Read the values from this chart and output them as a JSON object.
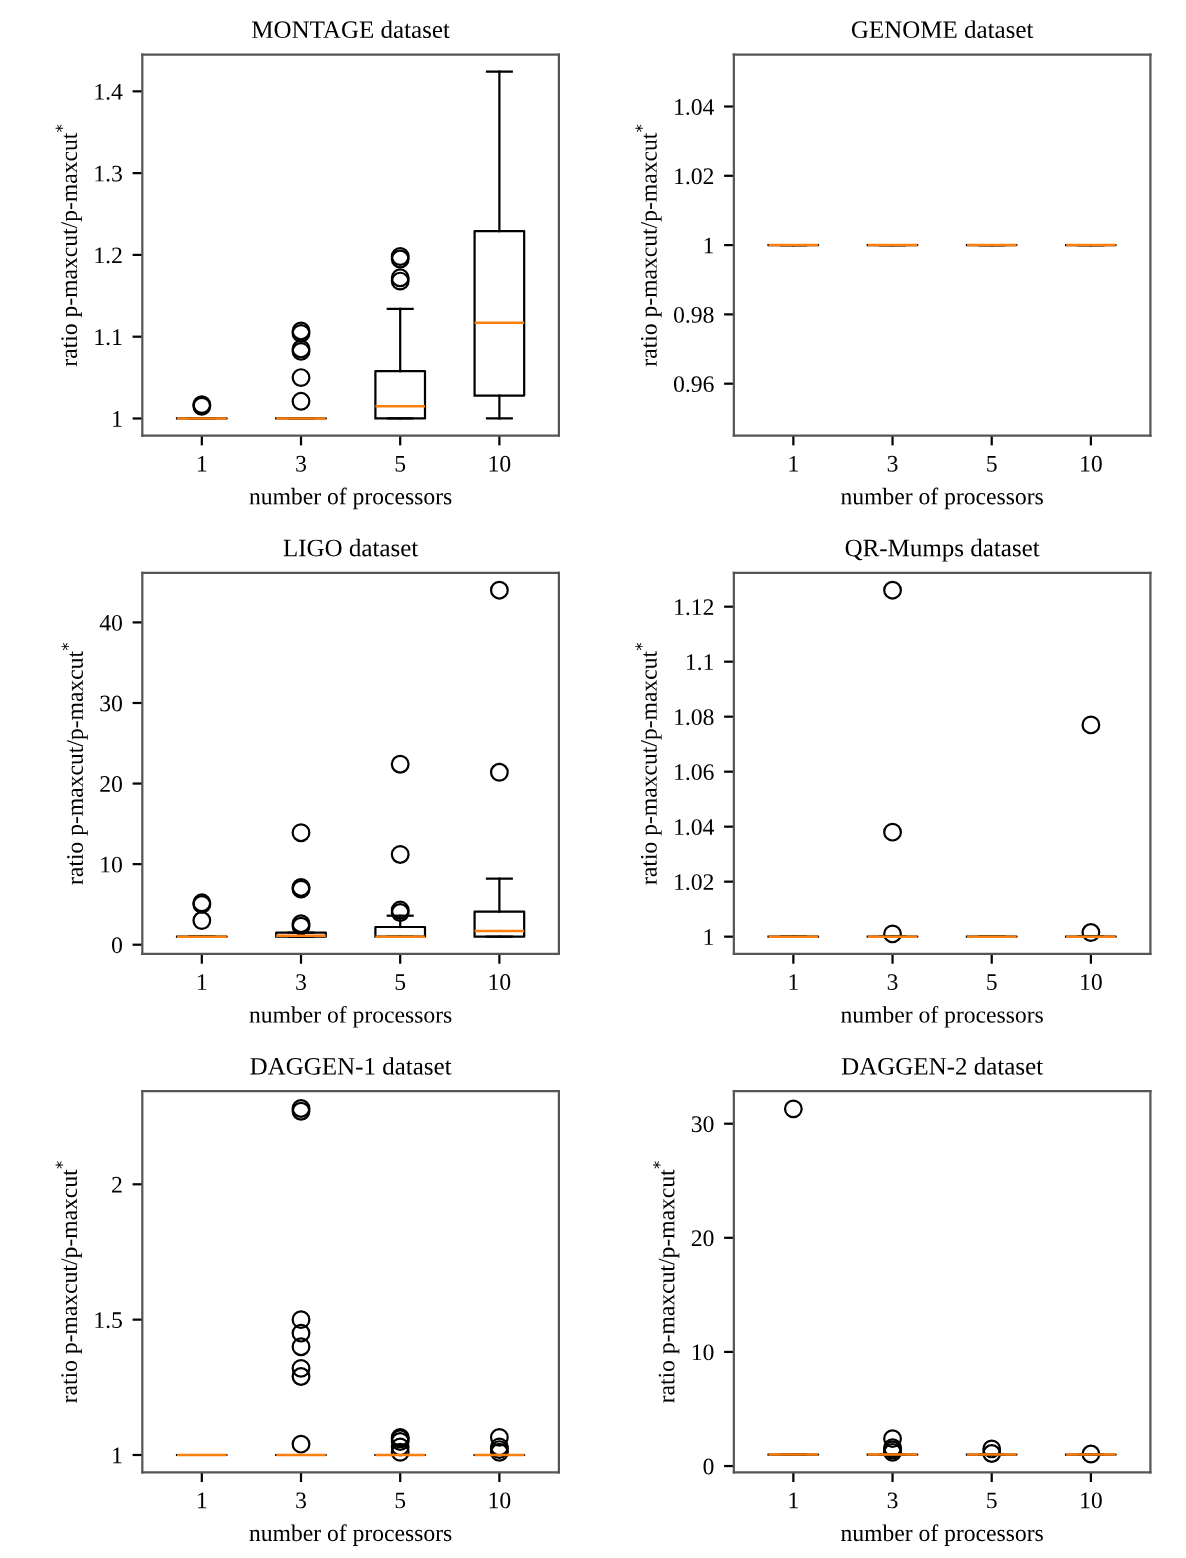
{
  "chart_data": [
    {
      "type": "box",
      "title": "MONTAGE dataset",
      "xlabel": "number of processors",
      "ylabel": "ratio p-maxcut/p-maxcut$^{*}$",
      "categories": [
        "1",
        "3",
        "5",
        "10"
      ],
      "ylim": [
        0.979,
        1.445
      ],
      "yticks": [
        1,
        1.1,
        1.2,
        1.3,
        1.4
      ],
      "boxes": [
        {
          "low": 1,
          "q1": 1,
          "median": 1,
          "q3": 1,
          "high": 1,
          "outliers": [
            1.015,
            1.017
          ]
        },
        {
          "low": 1,
          "q1": 1,
          "median": 1,
          "q3": 1,
          "high": 1,
          "outliers": [
            1.021,
            1.05,
            1.082,
            1.085,
            1.104,
            1.107
          ]
        },
        {
          "low": 1,
          "q1": 1,
          "median": 1.015,
          "q3": 1.058,
          "high": 1.134,
          "outliers": [
            1.168,
            1.172,
            1.195,
            1.198
          ]
        },
        {
          "low": 1,
          "q1": 1.028,
          "median": 1.117,
          "q3": 1.229,
          "high": 1.424
        }
      ]
    },
    {
      "type": "box",
      "title": "GENOME dataset",
      "xlabel": "number of processors",
      "ylabel": "ratio p-maxcut/p-maxcut$^{*}$",
      "categories": [
        "1",
        "3",
        "5",
        "10"
      ],
      "ylim": [
        0.945,
        1.055
      ],
      "yticks": [
        0.96,
        0.98,
        1,
        1.02,
        1.04
      ],
      "boxes": [
        {
          "low": 1,
          "q1": 1,
          "median": 1,
          "q3": 1,
          "high": 1
        },
        {
          "low": 1,
          "q1": 1,
          "median": 1,
          "q3": 1,
          "high": 1
        },
        {
          "low": 1,
          "q1": 1,
          "median": 1,
          "q3": 1,
          "high": 1
        },
        {
          "low": 1,
          "q1": 1,
          "median": 1,
          "q3": 1,
          "high": 1
        }
      ]
    },
    {
      "type": "box",
      "title": "LIGO dataset",
      "xlabel": "number of processors",
      "ylabel": "ratio p-maxcut/p-maxcut$^{*}$",
      "categories": [
        "1",
        "3",
        "5",
        "10"
      ],
      "ylim": [
        -1.15,
        46.15
      ],
      "yticks": [
        0,
        10,
        20,
        30,
        40
      ],
      "boxes": [
        {
          "low": 1,
          "q1": 1,
          "median": 1,
          "q3": 1,
          "high": 1,
          "outliers": [
            3,
            5,
            5.2
          ]
        },
        {
          "low": 1,
          "q1": 1,
          "median": 1.1,
          "q3": 1.5,
          "high": 1.5,
          "outliers": [
            2.3,
            2.6,
            6.9,
            7.1,
            13.9
          ]
        },
        {
          "low": 1,
          "q1": 1,
          "median": 1,
          "q3": 2.2,
          "high": 3.6,
          "outliers": [
            4,
            4.3,
            11.2,
            22.4
          ]
        },
        {
          "low": 1,
          "q1": 1,
          "median": 1.7,
          "q3": 4.1,
          "high": 8.2,
          "outliers": [
            21.4,
            44
          ]
        }
      ]
    },
    {
      "type": "box",
      "title": "QR-Mumps dataset",
      "xlabel": "number of processors",
      "ylabel": "ratio p-maxcut/p-maxcut$^{*}$",
      "categories": [
        "1",
        "3",
        "5",
        "10"
      ],
      "ylim": [
        0.9937,
        1.1323
      ],
      "yticks": [
        1,
        1.02,
        1.04,
        1.06,
        1.08,
        1.1,
        1.12
      ],
      "boxes": [
        {
          "low": 1,
          "q1": 1,
          "median": 1,
          "q3": 1,
          "high": 1
        },
        {
          "low": 1,
          "q1": 1,
          "median": 1,
          "q3": 1,
          "high": 1,
          "outliers": [
            1.001,
            1.038,
            1.126
          ]
        },
        {
          "low": 1,
          "q1": 1,
          "median": 1,
          "q3": 1,
          "high": 1
        },
        {
          "low": 1,
          "q1": 1,
          "median": 1,
          "q3": 1,
          "high": 1,
          "outliers": [
            1.0015,
            1.077
          ]
        }
      ]
    },
    {
      "type": "box",
      "title": "DAGGEN-1 dataset",
      "xlabel": "number of processors",
      "ylabel": "ratio p-maxcut/p-maxcut$^{*}$",
      "categories": [
        "1",
        "3",
        "5",
        "10"
      ],
      "ylim": [
        0.936,
        2.344
      ],
      "yticks": [
        1,
        1.5,
        2
      ],
      "boxes": [
        {
          "low": 1,
          "q1": 1,
          "median": 1,
          "q3": 1,
          "high": 1
        },
        {
          "low": 1,
          "q1": 1,
          "median": 1,
          "q3": 1,
          "high": 1,
          "outliers": [
            1.04,
            1.29,
            1.32,
            1.4,
            1.45,
            1.5,
            2.27,
            2.28
          ]
        },
        {
          "low": 1,
          "q1": 1,
          "median": 1,
          "q3": 1,
          "high": 1,
          "outliers": [
            1.01,
            1.03,
            1.05,
            1.06,
            1.065
          ]
        },
        {
          "low": 1,
          "q1": 1,
          "median": 1,
          "q3": 1,
          "high": 1,
          "outliers": [
            1.01,
            1.02,
            1.03,
            1.065
          ]
        }
      ]
    },
    {
      "type": "box",
      "title": "DAGGEN-2 dataset",
      "xlabel": "number of processors",
      "ylabel": "ratio p-maxcut/p-maxcut$^{*}$",
      "categories": [
        "1",
        "3",
        "5",
        "10"
      ],
      "ylim": [
        -0.55,
        32.85
      ],
      "yticks": [
        0,
        10,
        20,
        30
      ],
      "boxes": [
        {
          "low": 1,
          "q1": 1,
          "median": 1,
          "q3": 1,
          "high": 1,
          "outliers": [
            31.3
          ]
        },
        {
          "low": 1,
          "q1": 1,
          "median": 1,
          "q3": 1,
          "high": 1,
          "outliers": [
            1.2,
            1.4,
            1.6,
            2.4
          ]
        },
        {
          "low": 1,
          "q1": 1,
          "median": 1,
          "q3": 1,
          "high": 1,
          "outliers": [
            1.1,
            1.5
          ]
        },
        {
          "low": 1,
          "q1": 1,
          "median": 1,
          "q3": 1,
          "high": 1,
          "outliers": [
            1.05
          ]
        }
      ]
    }
  ]
}
